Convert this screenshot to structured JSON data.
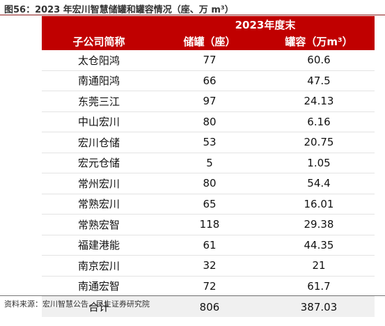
{
  "figure": {
    "title": "图56：2023 年宏川智慧储罐和罐容情况（座、万 m³）",
    "source": "资料来源：宏川智慧公告，民生证券研究院"
  },
  "table": {
    "group_header": "2023年度末",
    "columns": [
      "子公司简称",
      "储罐（座）",
      "罐容（万m³）"
    ],
    "rows": [
      [
        "太仓阳鸿",
        "77",
        "60.6"
      ],
      [
        "南通阳鸿",
        "66",
        "47.5"
      ],
      [
        "东莞三江",
        "97",
        "24.13"
      ],
      [
        "中山宏川",
        "80",
        "6.16"
      ],
      [
        "宏川仓储",
        "53",
        "20.75"
      ],
      [
        "宏元仓储",
        "5",
        "1.05"
      ],
      [
        "常州宏川",
        "80",
        "54.4"
      ],
      [
        "常熟宏川",
        "65",
        "16.01"
      ],
      [
        "常熟宏智",
        "118",
        "29.38"
      ],
      [
        "福建港能",
        "61",
        "44.35"
      ],
      [
        "南京宏川",
        "32",
        "21"
      ],
      [
        "南通宏智",
        "72",
        "61.7"
      ]
    ],
    "total": [
      "合计",
      "806",
      "387.03"
    ]
  }
}
